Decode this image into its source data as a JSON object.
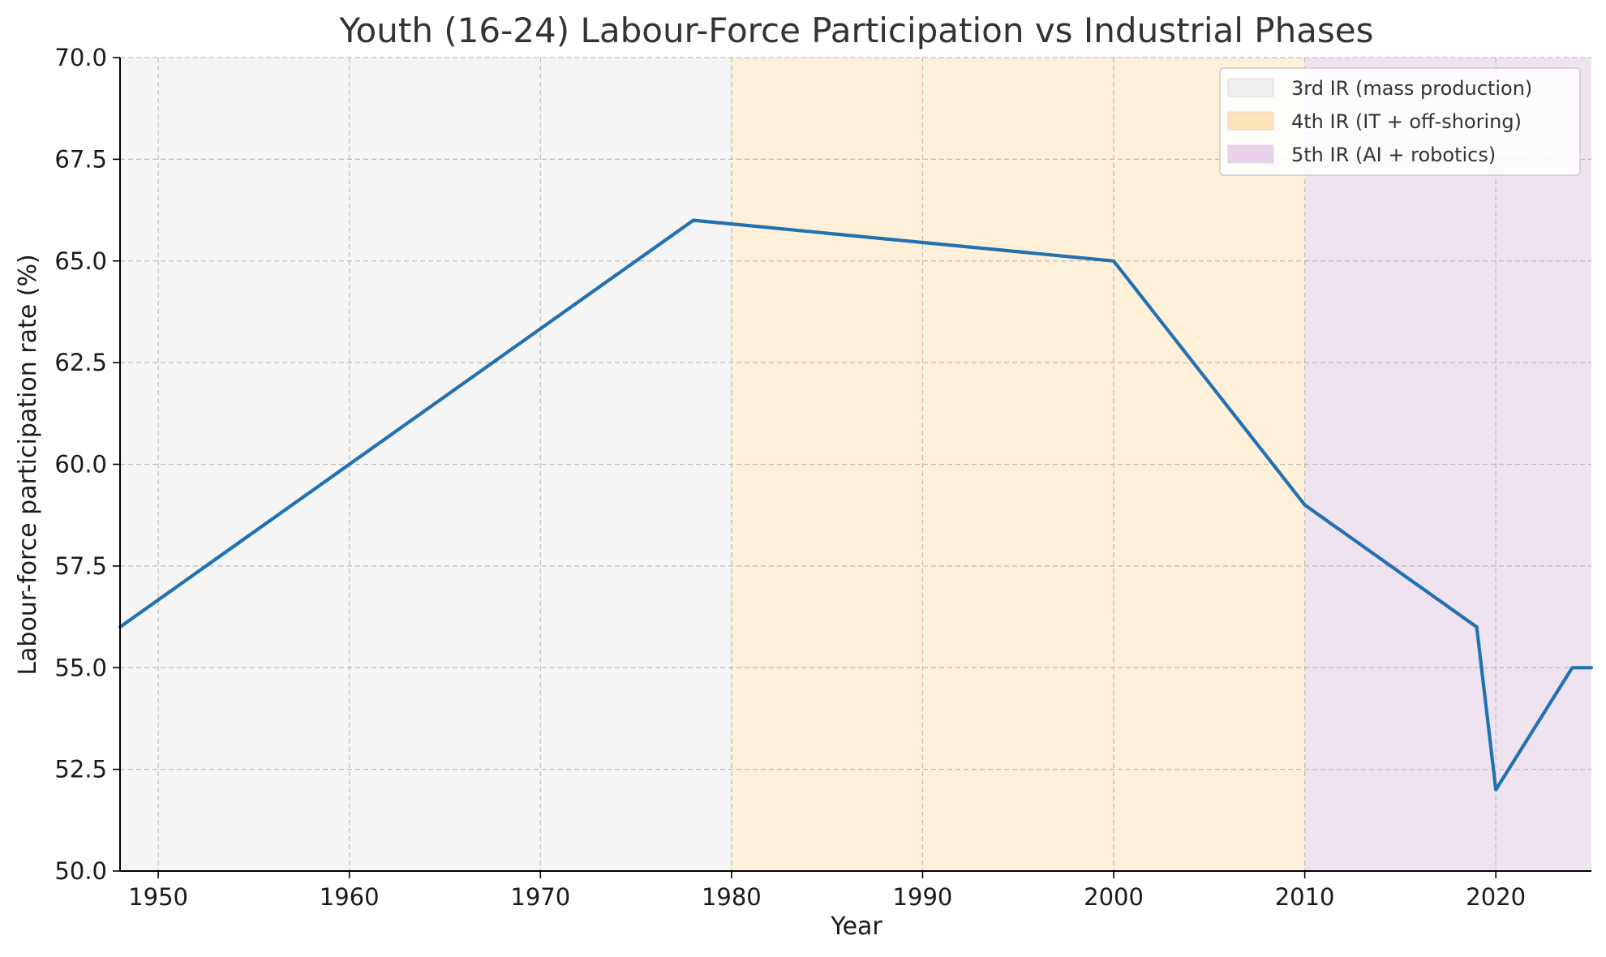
{
  "chart_data": {
    "type": "line",
    "title": "Youth (16-24) Labour-Force Participation vs Industrial Phases",
    "xlabel": "Year",
    "ylabel": "Labour-force participation rate (%)",
    "xlim": [
      1948,
      2025
    ],
    "ylim": [
      50,
      70
    ],
    "x_ticks": [
      1950,
      1960,
      1970,
      1980,
      1990,
      2000,
      2010,
      2020
    ],
    "y_ticks": [
      50.0,
      52.5,
      55.0,
      57.5,
      60.0,
      62.5,
      65.0,
      67.5,
      70.0
    ],
    "y_tick_labels": [
      "50.0",
      "52.5",
      "55.0",
      "57.5",
      "60.0",
      "62.5",
      "65.0",
      "67.5",
      "70.0"
    ],
    "grid": true,
    "legend_position": "top-right",
    "phases": [
      {
        "name": "3rd IR (mass production)",
        "start": 1948,
        "end": 1980,
        "color": "#f5f5f5",
        "legend_color": "#eeeeee"
      },
      {
        "name": "4th IR (IT + off-shoring)",
        "start": 1980,
        "end": 2010,
        "color": "#fff0d9",
        "legend_color": "#ffe3b8"
      },
      {
        "name": "5th IR (AI + robotics)",
        "start": 2010,
        "end": 2025,
        "color": "#efe3f0",
        "legend_color": "#e8d3ea"
      }
    ],
    "series": [
      {
        "color": "#2271b0",
        "x": [
          1948,
          1960,
          1978,
          2000,
          2010,
          2019,
          2020,
          2024,
          2025
        ],
        "y": [
          56.0,
          60.0,
          66.0,
          65.0,
          59.0,
          56.0,
          52.0,
          55.0,
          55.0
        ]
      }
    ]
  }
}
